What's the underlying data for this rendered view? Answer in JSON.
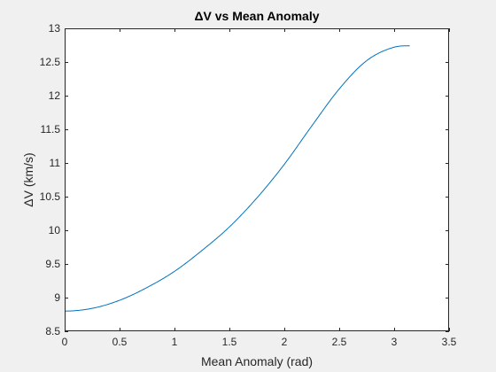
{
  "chart_data": {
    "type": "line",
    "title": "ΔV vs Mean Anomaly",
    "xlabel": "Mean Anomaly (rad)",
    "ylabel": "ΔV (km/s)",
    "xlim": [
      0,
      3.5
    ],
    "ylim": [
      8.5,
      13
    ],
    "grid": false,
    "x_ticks": [
      0,
      0.5,
      1,
      1.5,
      2,
      2.5,
      3,
      3.5
    ],
    "x_tick_labels": [
      "0",
      "0.5",
      "1",
      "1.5",
      "2",
      "2.5",
      "3",
      "3.5"
    ],
    "y_ticks": [
      8.5,
      9,
      9.5,
      10,
      10.5,
      11,
      11.5,
      12,
      12.5,
      13
    ],
    "y_tick_labels": [
      "8.5",
      "9",
      "9.5",
      "10",
      "10.5",
      "11",
      "11.5",
      "12",
      "12.5",
      "13"
    ],
    "series": [
      {
        "color": "#0072bd",
        "x": [
          0,
          0.25,
          0.5,
          0.75,
          1.0,
          1.25,
          1.5,
          1.75,
          2.0,
          2.25,
          2.5,
          2.75,
          3.0,
          3.1416
        ],
        "y": [
          8.8,
          8.84,
          8.96,
          9.15,
          9.39,
          9.7,
          10.05,
          10.48,
          10.98,
          11.55,
          12.1,
          12.52,
          12.72,
          12.74
        ]
      }
    ]
  }
}
